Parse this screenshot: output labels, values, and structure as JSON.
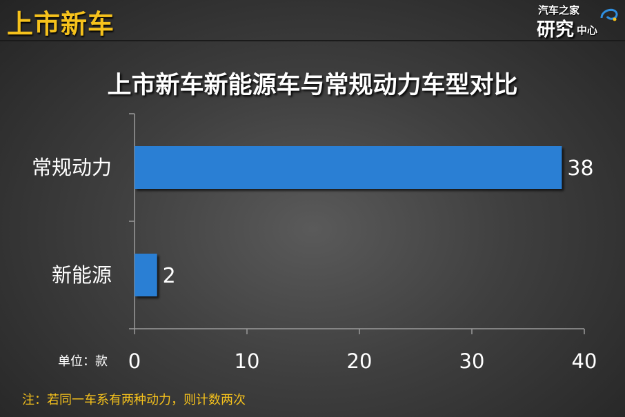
{
  "header": {
    "section_title": "上市新车",
    "logo": {
      "top": "汽车之家",
      "main": "研究",
      "sub": "中心"
    }
  },
  "chart_data": {
    "type": "bar",
    "orientation": "horizontal",
    "title": "上市新车新能源车与常规动力车型对比",
    "categories": [
      "常规动力",
      "新能源"
    ],
    "values": [
      38,
      2
    ],
    "data_labels": [
      "38",
      "2"
    ],
    "xlim": [
      0,
      40
    ],
    "x_ticks": [
      0,
      10,
      20,
      30,
      40
    ],
    "grid": false,
    "bar_color": "#2a7fd4",
    "unit_label": "单位：款"
  },
  "footnote": "注：若同一车系有两种动力，则计数两次"
}
